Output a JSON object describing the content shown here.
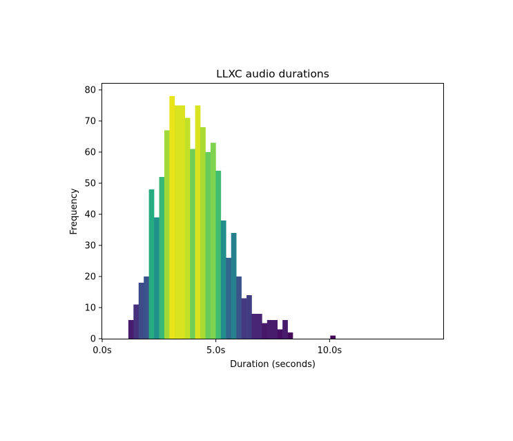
{
  "chart_data": {
    "type": "bar",
    "title": "LLXC audio durations",
    "xlabel": "Duration (seconds)",
    "ylabel": "Frequency",
    "xlim": [
      0,
      15
    ],
    "ylim": [
      0,
      82
    ],
    "grid": false,
    "legend": "none",
    "x_ticks": [
      {
        "value": 0,
        "label": "0.0s"
      },
      {
        "value": 5,
        "label": "5.0s"
      },
      {
        "value": 10,
        "label": "10.0s"
      }
    ],
    "y_ticks": [
      {
        "value": 0,
        "label": "0"
      },
      {
        "value": 10,
        "label": "10"
      },
      {
        "value": 20,
        "label": "20"
      },
      {
        "value": 30,
        "label": "30"
      },
      {
        "value": 40,
        "label": "40"
      },
      {
        "value": 50,
        "label": "50"
      },
      {
        "value": 60,
        "label": "60"
      },
      {
        "value": 70,
        "label": "70"
      },
      {
        "value": 80,
        "label": "80"
      }
    ],
    "colormap": "viridis",
    "color_scale_max": 78,
    "bin_width": 0.226,
    "bins": [
      {
        "start": 1.15,
        "count": 6
      },
      {
        "start": 1.376,
        "count": 11
      },
      {
        "start": 1.602,
        "count": 18
      },
      {
        "start": 1.828,
        "count": 20
      },
      {
        "start": 2.054,
        "count": 48
      },
      {
        "start": 2.28,
        "count": 39
      },
      {
        "start": 2.506,
        "count": 52
      },
      {
        "start": 2.732,
        "count": 67
      },
      {
        "start": 2.958,
        "count": 78
      },
      {
        "start": 3.184,
        "count": 75
      },
      {
        "start": 3.41,
        "count": 75
      },
      {
        "start": 3.636,
        "count": 71
      },
      {
        "start": 3.862,
        "count": 61
      },
      {
        "start": 4.088,
        "count": 75
      },
      {
        "start": 4.314,
        "count": 68
      },
      {
        "start": 4.54,
        "count": 60
      },
      {
        "start": 4.766,
        "count": 63
      },
      {
        "start": 4.992,
        "count": 54
      },
      {
        "start": 5.218,
        "count": 38
      },
      {
        "start": 5.444,
        "count": 26
      },
      {
        "start": 5.67,
        "count": 34
      },
      {
        "start": 5.896,
        "count": 20
      },
      {
        "start": 6.122,
        "count": 13
      },
      {
        "start": 6.348,
        "count": 14
      },
      {
        "start": 6.574,
        "count": 8
      },
      {
        "start": 6.8,
        "count": 8
      },
      {
        "start": 7.026,
        "count": 5
      },
      {
        "start": 7.252,
        "count": 6
      },
      {
        "start": 7.478,
        "count": 6
      },
      {
        "start": 7.704,
        "count": 3
      },
      {
        "start": 7.93,
        "count": 6
      },
      {
        "start": 8.156,
        "count": 2
      },
      {
        "start": 10.03,
        "count": 1
      }
    ]
  }
}
